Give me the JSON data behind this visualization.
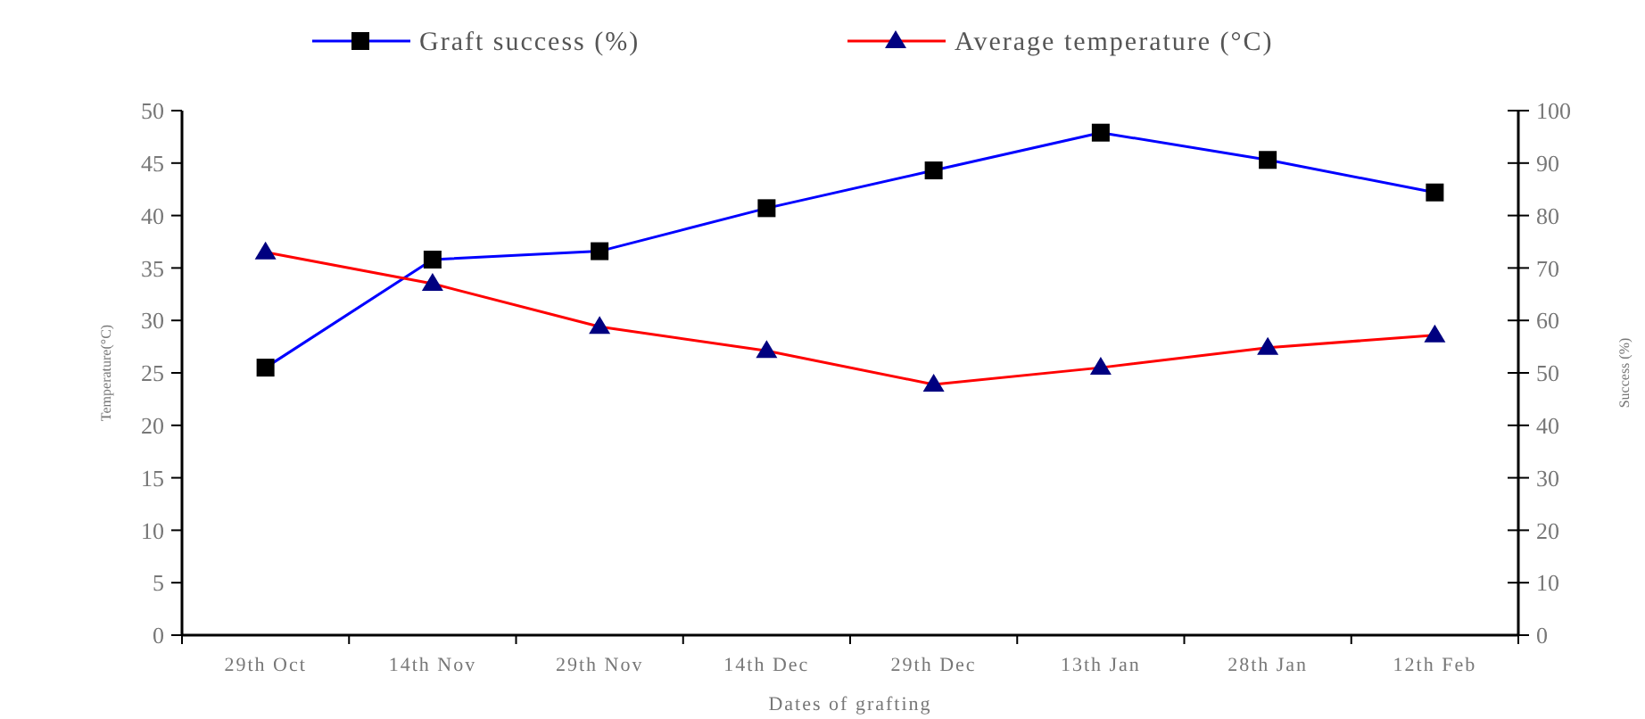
{
  "chart_data": {
    "type": "line",
    "xlabel": "Dates of grafting",
    "ylabel": "Temperature(°C)",
    "y2label": "Success (%)",
    "categories": [
      "29th Oct",
      "14th Nov",
      "29th Nov",
      "14th Dec",
      "29th Dec",
      "13th Jan",
      "28th Jan",
      "12th Feb"
    ],
    "series": [
      {
        "name": "Graft success (%)",
        "color": "#0000ff",
        "axis": "y2",
        "marker": "square",
        "values": [
          51,
          71.6,
          73.2,
          81.4,
          88.6,
          95.8,
          90.6,
          84.4
        ]
      },
      {
        "name": "Average temperature (°C)",
        "color": "#ff0000",
        "marker": "triangle",
        "values": [
          36.5,
          33.5,
          29.4,
          27.1,
          23.9,
          25.5,
          27.4,
          28.6
        ]
      }
    ],
    "ylim": [
      0,
      50
    ],
    "yticks": [
      0,
      5,
      10,
      15,
      20,
      25,
      30,
      35,
      40,
      45,
      50
    ],
    "y2lim": [
      0,
      100
    ],
    "y2ticks": [
      0,
      10,
      20,
      30,
      40,
      50,
      60,
      70,
      80,
      90,
      100
    ],
    "grid": false,
    "legend": "top",
    "line_style": "solid"
  }
}
